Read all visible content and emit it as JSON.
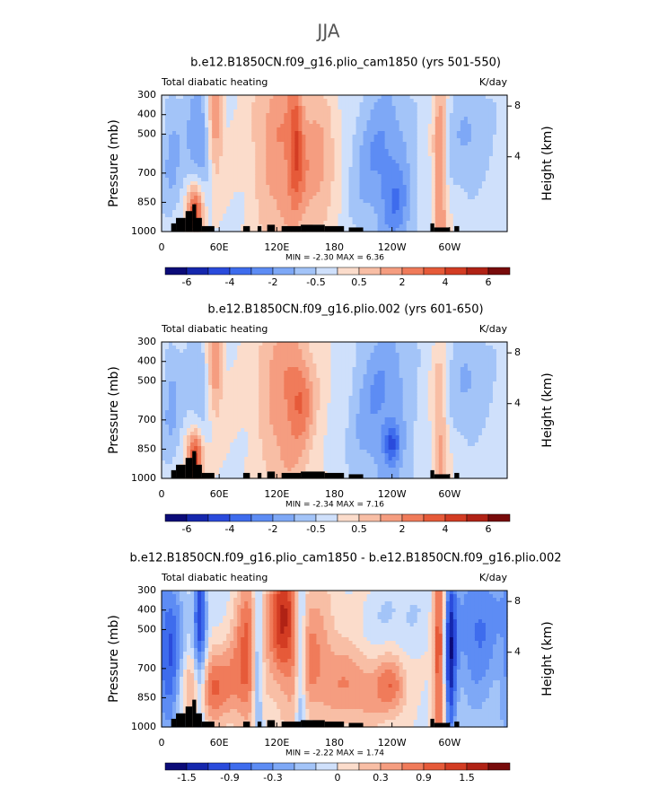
{
  "figure_title": "JJA",
  "chart_data": [
    {
      "type": "contour",
      "title": "b.e12.B1850CN.f09_g16.plio_cam1850 (yrs 501-550)",
      "left_label": "Total diabatic heating",
      "right_label": "K/day",
      "ylabel": "Pressure (mb)",
      "y2label": "Height (km)",
      "ylim": [
        1000,
        300
      ],
      "yticks": [
        300,
        400,
        500,
        700,
        850,
        1000
      ],
      "y2ticks": [
        4,
        8
      ],
      "xlim": [
        0,
        360
      ],
      "xticks": [
        0,
        {
          "value": 60,
          "label": "60E"
        },
        {
          "value": 120,
          "label": "120E"
        },
        180,
        {
          "value": 240,
          "label": "120W"
        },
        {
          "value": 300,
          "label": "60W"
        }
      ],
      "stats": "MIN =   -2.30   MAX =    6.36",
      "colorbar": {
        "colors": [
          "#0b0b78",
          "#1527ad",
          "#2a4bdc",
          "#3e6ced",
          "#5d8cf4",
          "#7ea8f6",
          "#a3c4f8",
          "#cfe0fb",
          "#fbdccb",
          "#f8bea5",
          "#f59d80",
          "#f07b5a",
          "#e65a39",
          "#d33c23",
          "#b02215",
          "#780b0b"
        ],
        "labels": [
          "-6",
          "-4",
          "-2",
          "-0.5",
          "0.5",
          "2",
          "4",
          "6"
        ]
      }
    },
    {
      "type": "contour",
      "title": "b.e12.B1850CN.f09_g16.plio.002 (yrs 601-650)",
      "left_label": "Total diabatic heating",
      "right_label": "K/day",
      "ylabel": "Pressure (mb)",
      "y2label": "Height (km)",
      "ylim": [
        1000,
        300
      ],
      "yticks": [
        300,
        400,
        500,
        700,
        850,
        1000
      ],
      "y2ticks": [
        4,
        8
      ],
      "xlim": [
        0,
        360
      ],
      "xticks": [
        0,
        {
          "value": 60,
          "label": "60E"
        },
        {
          "value": 120,
          "label": "120E"
        },
        180,
        {
          "value": 240,
          "label": "120W"
        },
        {
          "value": 300,
          "label": "60W"
        }
      ],
      "stats": "MIN =   -2.34   MAX =    7.16",
      "colorbar": {
        "colors": [
          "#0b0b78",
          "#1527ad",
          "#2a4bdc",
          "#3e6ced",
          "#5d8cf4",
          "#7ea8f6",
          "#a3c4f8",
          "#cfe0fb",
          "#fbdccb",
          "#f8bea5",
          "#f59d80",
          "#f07b5a",
          "#e65a39",
          "#d33c23",
          "#b02215",
          "#780b0b"
        ],
        "labels": [
          "-6",
          "-4",
          "-2",
          "-0.5",
          "0.5",
          "2",
          "4",
          "6"
        ]
      }
    },
    {
      "type": "contour",
      "title": "b.e12.B1850CN.f09_g16.plio_cam1850 - b.e12.B1850CN.f09_g16.plio.002",
      "left_label": "Total diabatic heating",
      "right_label": "K/day",
      "ylabel": "Pressure (mb)",
      "y2label": "Height (km)",
      "ylim": [
        1000,
        300
      ],
      "yticks": [
        300,
        400,
        500,
        700,
        850,
        1000
      ],
      "y2ticks": [
        4,
        8
      ],
      "xlim": [
        0,
        360
      ],
      "xticks": [
        0,
        {
          "value": 60,
          "label": "60E"
        },
        {
          "value": 120,
          "label": "120E"
        },
        180,
        {
          "value": 240,
          "label": "120W"
        },
        {
          "value": 300,
          "label": "60W"
        }
      ],
      "stats": "MIN =   -2.22   MAX =    1.74",
      "colorbar": {
        "colors": [
          "#0b0b78",
          "#1527ad",
          "#2a4bdc",
          "#3e6ced",
          "#5d8cf4",
          "#7ea8f6",
          "#a3c4f8",
          "#cfe0fb",
          "#fbdccb",
          "#f8bea5",
          "#f59d80",
          "#f07b5a",
          "#e65a39",
          "#d33c23",
          "#b02215",
          "#780b0b"
        ],
        "labels": [
          "-1.5",
          "-0.9",
          "-0.3",
          "0",
          "0.3",
          "0.9",
          "1.5"
        ]
      }
    }
  ]
}
